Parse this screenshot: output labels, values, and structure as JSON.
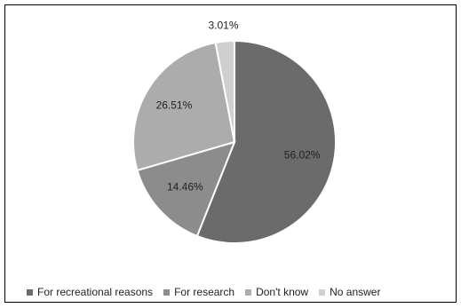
{
  "chart_data": {
    "type": "pie",
    "title": "",
    "categories": [
      "For recreational reasons",
      "For research",
      "Don't know",
      "No answer"
    ],
    "values": [
      56.02,
      14.46,
      26.51,
      3.01
    ],
    "data_labels": [
      "56.02%",
      "14.46%",
      "26.51%",
      "3.01%"
    ],
    "colors": [
      "#6b6b6b",
      "#8c8c8c",
      "#acacac",
      "#cfcfcf"
    ],
    "start_angle": "12 o'clock",
    "direction": "clockwise",
    "legend_position": "bottom"
  }
}
